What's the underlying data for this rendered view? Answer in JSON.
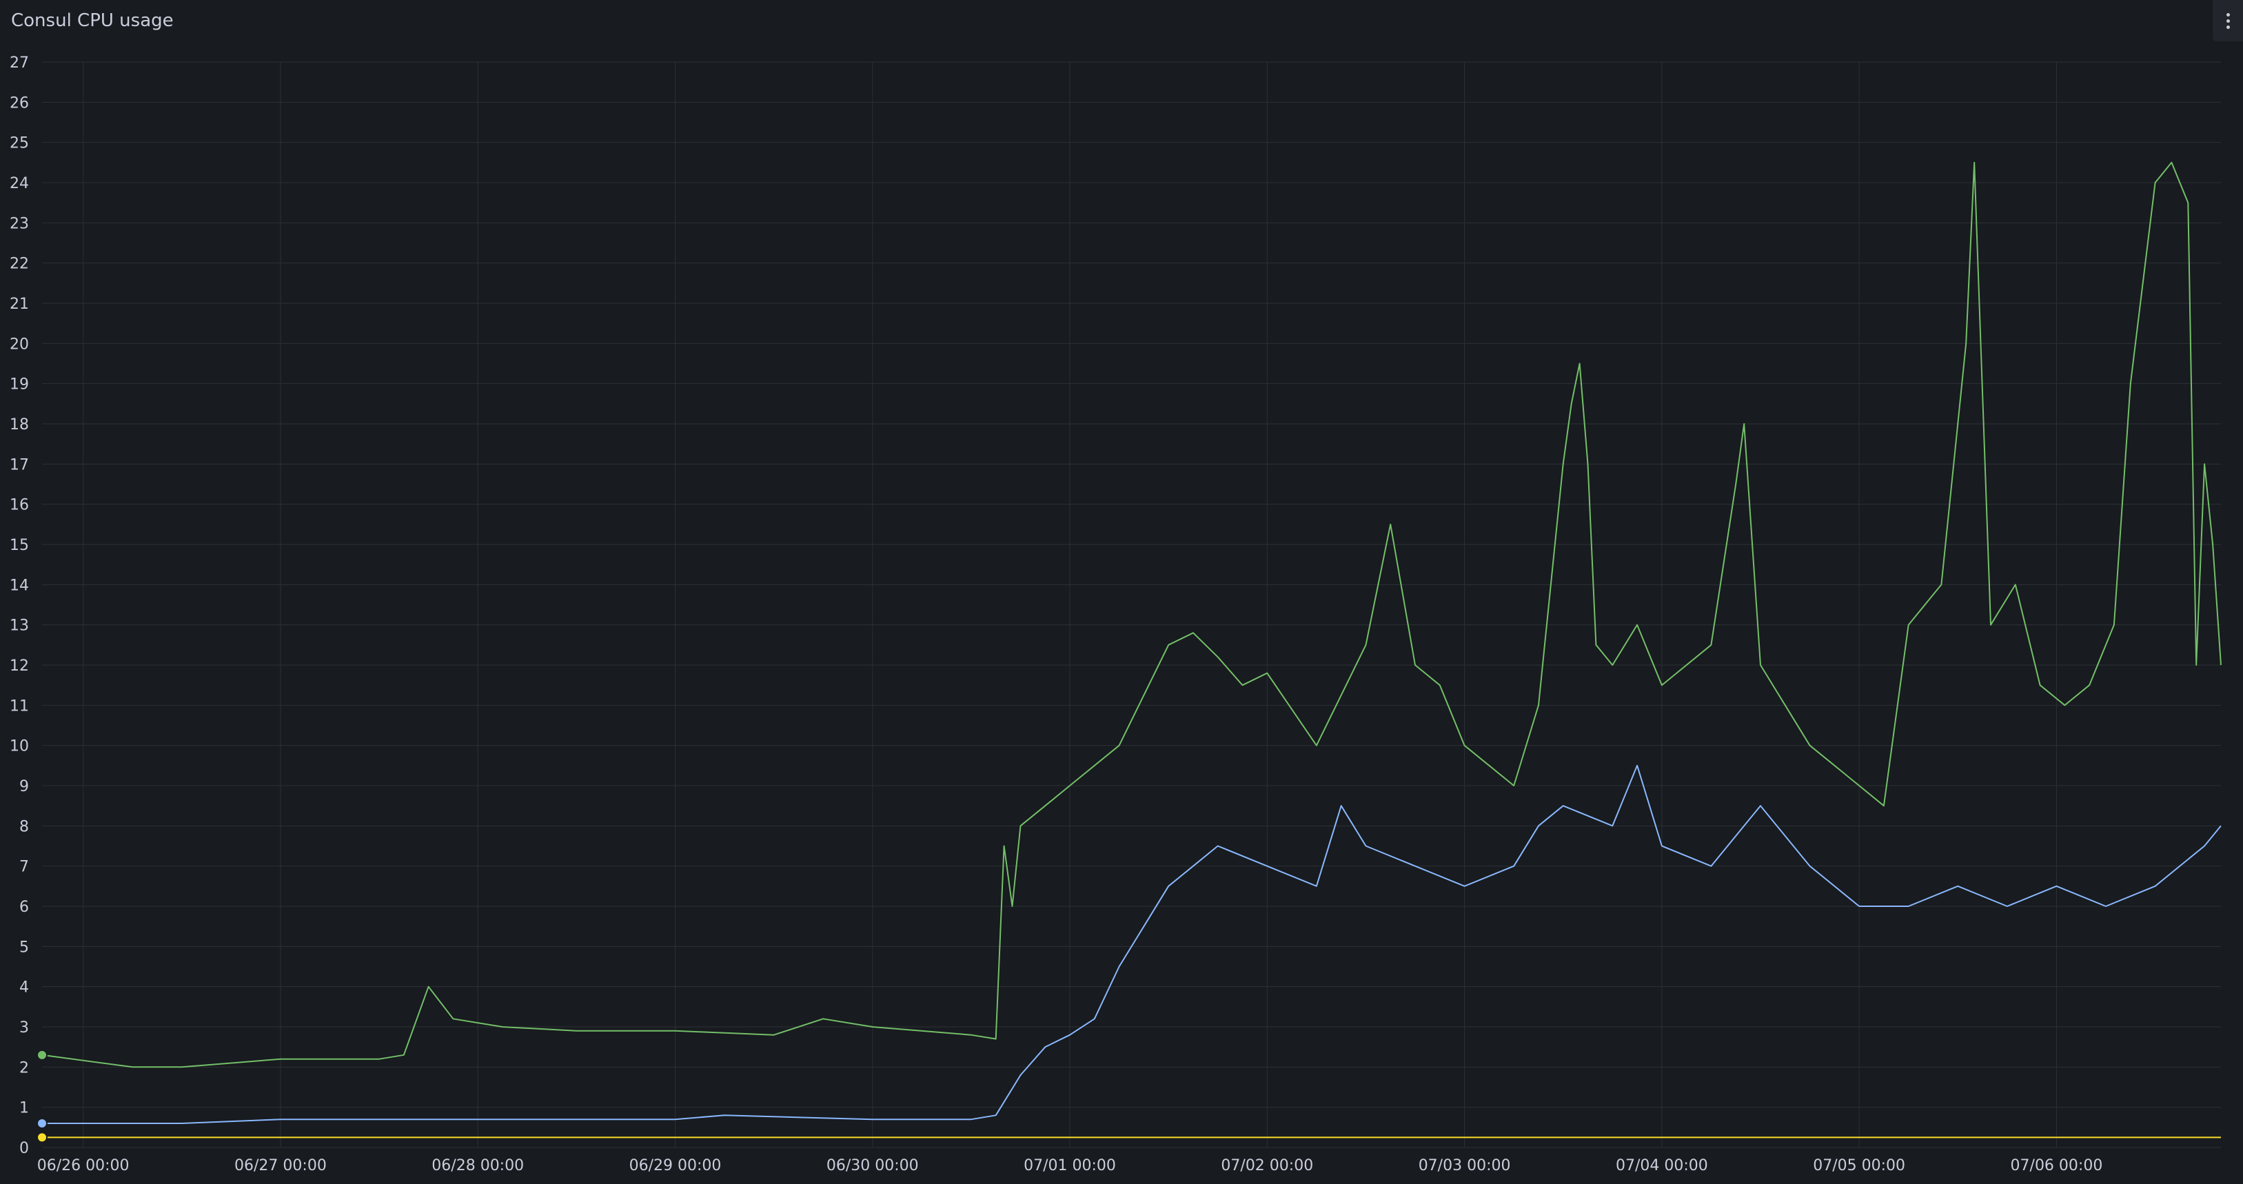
{
  "panel": {
    "title": "Consul CPU usage",
    "menu_icon": "kebab-menu-icon"
  },
  "colors": {
    "background": "#181b1f",
    "grid": "#2c3036",
    "text": "#ccccdc"
  },
  "chart_data": {
    "type": "line",
    "title": "Consul CPU usage",
    "xlabel": "",
    "ylabel": "",
    "ylim": [
      0,
      27
    ],
    "yticks": [
      0,
      1,
      2,
      3,
      4,
      5,
      6,
      7,
      8,
      9,
      10,
      11,
      12,
      13,
      14,
      15,
      16,
      17,
      18,
      19,
      20,
      21,
      22,
      23,
      24,
      25,
      26,
      27
    ],
    "xlim": [
      "06/25 19:00",
      "07/06 20:00"
    ],
    "xticks": [
      "06/26 00:00",
      "06/27 00:00",
      "06/28 00:00",
      "06/29 00:00",
      "06/30 00:00",
      "07/01 00:00",
      "07/02 00:00",
      "07/03 00:00",
      "07/04 00:00",
      "07/05 00:00",
      "07/06 00:00"
    ],
    "grid": true,
    "legend": "none",
    "series": [
      {
        "color": "#73bf69",
        "x": [
          "06/25 19:00",
          "06/26 06:00",
          "06/26 12:00",
          "06/26 18:00",
          "06/27 00:00",
          "06/27 12:00",
          "06/27 15:00",
          "06/27 18:00",
          "06/27 21:00",
          "06/28 03:00",
          "06/28 12:00",
          "06/29 00:00",
          "06/29 12:00",
          "06/29 18:00",
          "06/30 00:00",
          "06/30 12:00",
          "06/30 15:00",
          "06/30 16:00",
          "06/30 17:00",
          "06/30 18:00",
          "06/30 21:00",
          "07/01 00:00",
          "07/01 06:00",
          "07/01 12:00",
          "07/01 15:00",
          "07/01 18:00",
          "07/01 21:00",
          "07/02 00:00",
          "07/02 06:00",
          "07/02 12:00",
          "07/02 15:00",
          "07/02 18:00",
          "07/02 21:00",
          "07/03 00:00",
          "07/03 06:00",
          "07/03 09:00",
          "07/03 12:00",
          "07/03 13:00",
          "07/03 14:00",
          "07/03 15:00",
          "07/03 16:00",
          "07/03 18:00",
          "07/03 21:00",
          "07/04 00:00",
          "07/04 06:00",
          "07/04 09:00",
          "07/04 10:00",
          "07/04 12:00",
          "07/04 15:00",
          "07/04 18:00",
          "07/04 21:00",
          "07/05 00:00",
          "07/05 03:00",
          "07/05 06:00",
          "07/05 10:00",
          "07/05 13:00",
          "07/05 14:00",
          "07/05 16:00",
          "07/05 19:00",
          "07/05 22:00",
          "07/06 01:00",
          "07/06 04:00",
          "07/06 07:00",
          "07/06 09:00",
          "07/06 12:00",
          "07/06 14:00",
          "07/06 16:00",
          "07/06 17:00",
          "07/06 18:00",
          "07/06 19:00",
          "07/06 20:00"
        ],
        "values": [
          2.3,
          2.0,
          2.0,
          2.1,
          2.2,
          2.2,
          2.3,
          4.0,
          3.2,
          3.0,
          2.9,
          2.9,
          2.8,
          3.2,
          3.0,
          2.8,
          2.7,
          7.5,
          6.0,
          8.0,
          8.5,
          9.0,
          10.0,
          12.5,
          12.8,
          12.2,
          11.5,
          11.8,
          10.0,
          12.5,
          15.5,
          12.0,
          11.5,
          10.0,
          9.0,
          11.0,
          17.0,
          18.5,
          19.5,
          17.0,
          12.5,
          12.0,
          13.0,
          11.5,
          12.5,
          16.5,
          18.0,
          12.0,
          11.0,
          10.0,
          9.5,
          9.0,
          8.5,
          13.0,
          14.0,
          20.0,
          24.5,
          13.0,
          14.0,
          11.5,
          11.0,
          11.5,
          13.0,
          19.0,
          24.0,
          24.5,
          23.5,
          12.0,
          17.0,
          15.0,
          12.0
        ]
      },
      {
        "color": "#8ab8ff",
        "x": [
          "06/25 19:00",
          "06/26 12:00",
          "06/27 00:00",
          "06/28 00:00",
          "06/29 00:00",
          "06/29 06:00",
          "06/30 00:00",
          "06/30 12:00",
          "06/30 15:00",
          "06/30 18:00",
          "06/30 21:00",
          "07/01 00:00",
          "07/01 03:00",
          "07/01 06:00",
          "07/01 09:00",
          "07/01 12:00",
          "07/01 15:00",
          "07/01 18:00",
          "07/02 00:00",
          "07/02 06:00",
          "07/02 09:00",
          "07/02 12:00",
          "07/02 18:00",
          "07/03 00:00",
          "07/03 06:00",
          "07/03 09:00",
          "07/03 12:00",
          "07/03 18:00",
          "07/03 21:00",
          "07/04 00:00",
          "07/04 06:00",
          "07/04 12:00",
          "07/04 18:00",
          "07/05 00:00",
          "07/05 06:00",
          "07/05 12:00",
          "07/05 18:00",
          "07/06 00:00",
          "07/06 06:00",
          "07/06 12:00",
          "07/06 18:00",
          "07/06 20:00"
        ],
        "values": [
          0.6,
          0.6,
          0.7,
          0.7,
          0.7,
          0.8,
          0.7,
          0.7,
          0.8,
          1.8,
          2.5,
          2.8,
          3.2,
          4.5,
          5.5,
          6.5,
          7.0,
          7.5,
          7.0,
          6.5,
          8.5,
          7.5,
          7.0,
          6.5,
          7.0,
          8.0,
          8.5,
          8.0,
          9.5,
          7.5,
          7.0,
          8.5,
          7.0,
          6.0,
          6.0,
          6.5,
          6.0,
          6.5,
          6.0,
          6.5,
          7.5,
          8.0
        ]
      },
      {
        "color": "#fade2a",
        "x": [
          "06/25 19:00",
          "06/30 12:00",
          "07/03 00:00",
          "07/06 20:00"
        ],
        "values": [
          0.25,
          0.25,
          0.25,
          0.25
        ]
      }
    ]
  }
}
